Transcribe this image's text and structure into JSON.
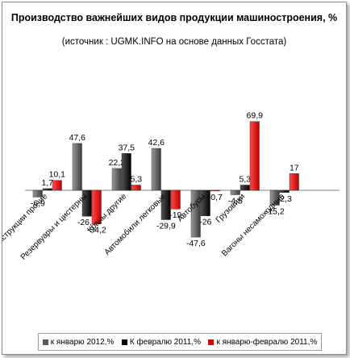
{
  "chart_data": {
    "type": "bar",
    "title": "Производство важнейших видов продукции машиностроения, %",
    "subtitle": "(источник : UGMK.INFO на основе данных Госстата)",
    "categories": [
      "Конструкции прочие",
      "Резервуары и цистерны",
      "Краны другие",
      "Автомобили легковые",
      "Автобусы",
      "Грузовики",
      "Вагоны несамоходные"
    ],
    "series": [
      {
        "name": "к январю 2012,%",
        "color": "#5a5a5a",
        "values": [
          -6.9,
          47.6,
          22.2,
          42.6,
          -47.6,
          -4.5,
          -15.2
        ]
      },
      {
        "name": "К февралю 2011,%",
        "color": "#000000",
        "values": [
          1.7,
          -26.4,
          37.5,
          -29.9,
          -26,
          5.3,
          -2.3
        ]
      },
      {
        "name": "к январю-февралю 2011,%",
        "color": "#e00000",
        "values": [
          10.1,
          -34.2,
          5.3,
          -19,
          -0.7,
          69.9,
          17
        ]
      }
    ],
    "labels": [
      [
        "-6,9",
        "47,6",
        "22,2",
        "42,6",
        "-47,6",
        "-4,5",
        "-15,2"
      ],
      [
        "1,7",
        "-26,4",
        "37,5",
        "-29,9",
        "-26",
        "5,3",
        "-2,3"
      ],
      [
        "10,1",
        "-34,2",
        "5,3",
        "-19",
        "-0,7",
        "69,9",
        "17"
      ]
    ],
    "category_labels": [
      "Конструкции прочие",
      "Резервуары и цистерны",
      "Краны другие",
      "Автомобили легковые",
      "Автобусы",
      "Грузовики",
      "Вагоны несамоходные"
    ],
    "legend_position": "bottom",
    "grid": false
  }
}
